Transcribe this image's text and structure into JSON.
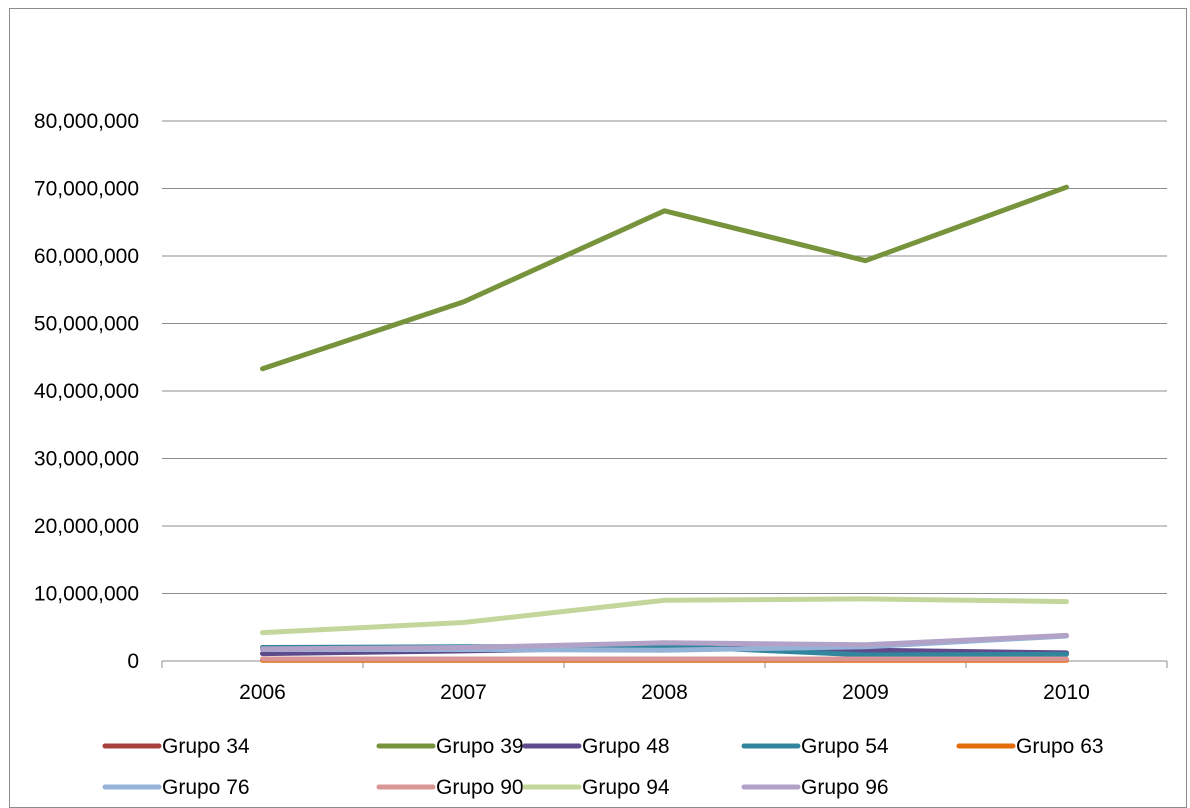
{
  "chart_data": {
    "type": "line",
    "title": "",
    "xlabel": "",
    "ylabel": "",
    "categories": [
      "2006",
      "2007",
      "2008",
      "2009",
      "2010"
    ],
    "ylim": [
      0,
      80000000
    ],
    "yticks": [
      0,
      10000000,
      20000000,
      30000000,
      40000000,
      50000000,
      60000000,
      70000000,
      80000000
    ],
    "ytick_labels": [
      "0",
      "10,000,000",
      "20,000,000",
      "30,000,000",
      "40,000,000",
      "50,000,000",
      "60,000,000",
      "70,000,000",
      "80,000,000"
    ],
    "grid": "horizontal",
    "legend_position": "bottom",
    "series": [
      {
        "name": "Grupo 34",
        "color": "#a5403d",
        "values": [
          200000,
          200000,
          200000,
          200000,
          200000
        ]
      },
      {
        "name": "Grupo 39",
        "color": "#77933c",
        "values": [
          43300000,
          53200000,
          66700000,
          59300000,
          70200000
        ]
      },
      {
        "name": "Grupo 48",
        "color": "#5f4a8b",
        "values": [
          1100000,
          1500000,
          2000000,
          1600000,
          1200000
        ]
      },
      {
        "name": "Grupo 54",
        "color": "#31859c",
        "values": [
          2000000,
          2100000,
          2200000,
          900000,
          1000000
        ]
      },
      {
        "name": "Grupo 63",
        "color": "#e46c0a",
        "values": [
          100000,
          100000,
          100000,
          100000,
          100000
        ]
      },
      {
        "name": "Grupo 76",
        "color": "#95b3d7",
        "values": [
          1700000,
          1700000,
          1600000,
          2100000,
          3700000
        ]
      },
      {
        "name": "Grupo 90",
        "color": "#d99694",
        "values": [
          300000,
          300000,
          300000,
          300000,
          300000
        ]
      },
      {
        "name": "Grupo 94",
        "color": "#c3d69b",
        "values": [
          4200000,
          5700000,
          9000000,
          9200000,
          8800000
        ]
      },
      {
        "name": "Grupo 96",
        "color": "#b3a2c7",
        "values": [
          1800000,
          2000000,
          2700000,
          2400000,
          3800000
        ]
      }
    ]
  }
}
